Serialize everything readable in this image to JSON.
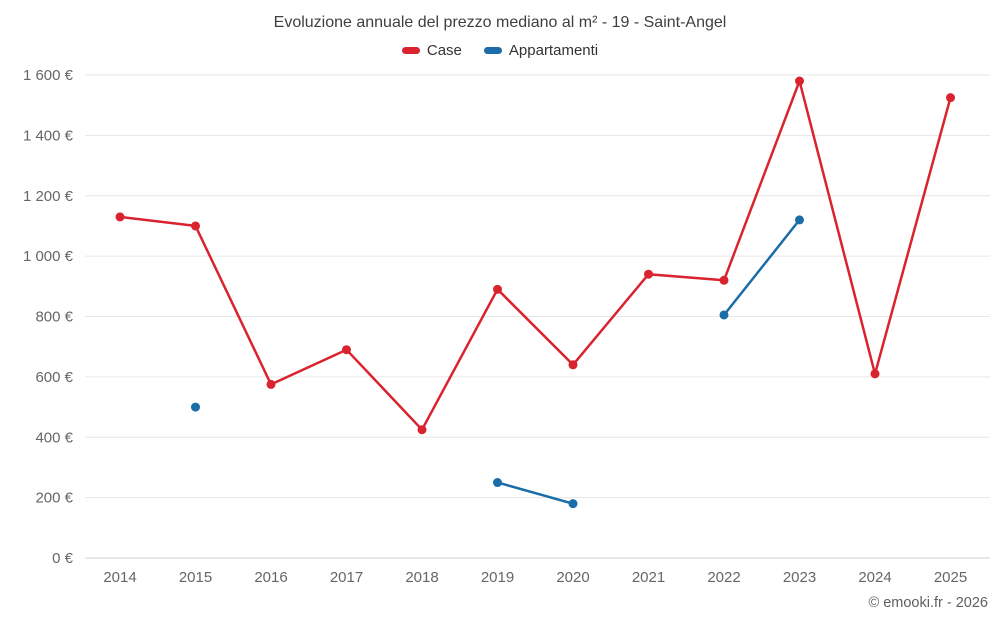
{
  "title": "Evoluzione annuale del prezzo mediano al m² - 19 - Saint-Angel",
  "footer": {
    "copyright": "© emooki.fr - 2026"
  },
  "chart_data": {
    "type": "line",
    "title": "Evoluzione annuale del prezzo mediano al m² - 19 - Saint-Angel",
    "x": [
      "2014",
      "2015",
      "2016",
      "2017",
      "2018",
      "2019",
      "2020",
      "2021",
      "2022",
      "2023",
      "2024",
      "2025"
    ],
    "series": [
      {
        "name": "Case",
        "color": "#d9232e",
        "values": [
          1130,
          1100,
          575,
          690,
          425,
          890,
          640,
          940,
          920,
          1580,
          610,
          1525
        ]
      },
      {
        "name": "Appartamenti",
        "color": "#1a6da8",
        "values": [
          null,
          500,
          null,
          null,
          null,
          250,
          180,
          null,
          805,
          1120,
          null,
          null
        ]
      }
    ],
    "ylim": [
      0,
      1600
    ],
    "ytick_step": 200,
    "yticks": [
      "0 €",
      "200 €",
      "400 €",
      "600 €",
      "800 €",
      "1 000 €",
      "1 200 €",
      "1 400 €",
      "1 600 €"
    ],
    "grid": "horizontal",
    "legend_position": "top",
    "grid_color": "#e6e6e6",
    "axis_color": "#d0d0d0",
    "tick_label_color": "#666666"
  }
}
